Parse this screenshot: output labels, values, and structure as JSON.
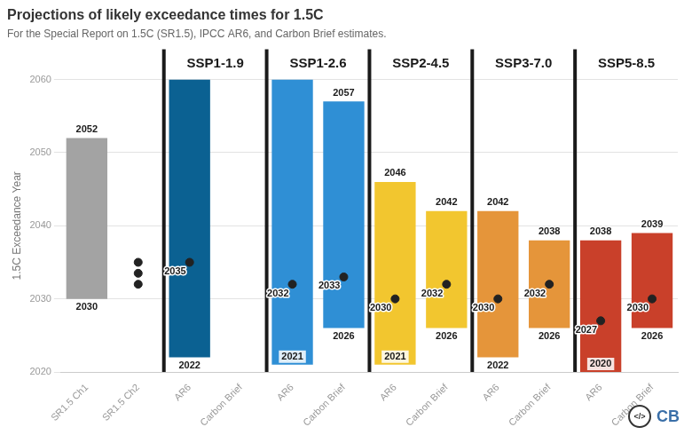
{
  "chart_data": {
    "type": "bar",
    "title": "Projections of likely exceedance times for 1.5C",
    "subtitle": "For the Special Report on 1.5C (SR1.5), IPCC AR6, and Carbon Brief estimates.",
    "y_label": "1.5C Exceedance Year",
    "categories": [
      "SR1.5 Ch1",
      "SR1.5 Ch2",
      "AR6",
      "Carbon Brief",
      "AR6",
      "Carbon Brief",
      "AR6",
      "Carbon Brief",
      "AR6",
      "Carbon Brief",
      "AR6",
      "Carbon Brief"
    ],
    "groups": [
      null,
      null,
      "SSP1-1.9",
      "SSP1-1.9",
      "SSP1-2.6",
      "SSP1-2.6",
      "SSP2-4.5",
      "SSP2-4.5",
      "SSP3-7.0",
      "SSP3-7.0",
      "SSP5-8.5",
      "SSP5-8.5"
    ],
    "series": [
      {
        "type": "bar",
        "colors": [
          "#a3a3a3",
          null,
          "#0b6192",
          null,
          "#2f8fd5",
          "#2f8fd5",
          "#f2c62f",
          "#f2c62f",
          "#e5953a",
          "#e5953a",
          "#c9402a",
          "#c9402a"
        ],
        "values": [
          [
            2030,
            2052
          ],
          null,
          [
            2022,
            2060
          ],
          null,
          [
            2021,
            2060
          ],
          [
            2026,
            2057
          ],
          [
            2021,
            2046
          ],
          [
            2026,
            2042
          ],
          [
            2022,
            2042
          ],
          [
            2026,
            2038
          ],
          [
            2020,
            2038
          ],
          [
            2026,
            2039
          ]
        ],
        "value_labels": [
          [
            "2030",
            "2052"
          ],
          null,
          [
            "2022",
            null
          ],
          null,
          [
            "2021",
            null
          ],
          [
            "2026",
            "2057"
          ],
          [
            "2021",
            "2046"
          ],
          [
            "2026",
            "2042"
          ],
          [
            "2022",
            "2042"
          ],
          [
            "2026",
            "2038"
          ],
          [
            "2020",
            "2038"
          ],
          [
            "2026",
            "2039"
          ]
        ]
      },
      {
        "type": "scatter",
        "color": "#222222",
        "marker": "circle",
        "values": [
          null,
          [
            2032,
            2033.5,
            2035
          ],
          [
            2035
          ],
          null,
          [
            2032
          ],
          [
            2033
          ],
          [
            2030
          ],
          [
            2032
          ],
          [
            2030
          ],
          [
            2032
          ],
          [
            2027
          ],
          [
            2030
          ]
        ],
        "value_labels": [
          null,
          [
            null,
            null,
            null
          ],
          [
            "2035"
          ],
          null,
          [
            "2032"
          ],
          [
            "2033"
          ],
          [
            "2030"
          ],
          [
            "2032"
          ],
          [
            "2030"
          ],
          [
            "2032"
          ],
          [
            "2027"
          ],
          [
            "2030"
          ]
        ]
      }
    ],
    "ylim": [
      2020,
      2060
    ],
    "yticks": [
      2020,
      2030,
      2040,
      2050,
      2060
    ],
    "grid": true,
    "data_labels": true,
    "tick_labels": true,
    "logo": {
      "icon": "</>",
      "text": "CB"
    }
  }
}
